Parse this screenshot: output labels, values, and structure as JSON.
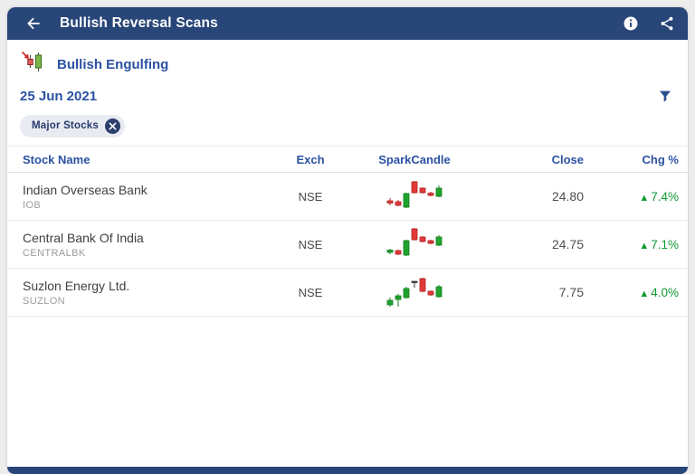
{
  "header": {
    "title": "Bullish Reversal Scans",
    "back_icon": "back-arrow-icon",
    "info_icon": "info-icon",
    "share_icon": "share-icon"
  },
  "scan": {
    "title": "Bullish Engulfing",
    "date": "25 Jun 2021",
    "scan_icon": "bullish-engulfing-candles-icon",
    "filter_icon": "filter-funnel-icon"
  },
  "chip": {
    "label": "Major Stocks",
    "remove_icon": "close-x-icon"
  },
  "table": {
    "columns": [
      "Stock Name",
      "Exch",
      "SparkCandle",
      "Close",
      "Chg %"
    ],
    "rows": [
      {
        "name": "Indian Overseas Bank",
        "symbol": "IOB",
        "exch": "NSE",
        "close": "24.80",
        "chg": "7.4%",
        "direction": "up",
        "spark": [
          {
            "k": "down",
            "b": [
              27,
              29.5
            ],
            "w": [
              24,
              32
            ]
          },
          {
            "k": "down",
            "b": [
              28,
              32
            ],
            "w": [
              26,
              33
            ]
          },
          {
            "k": "up",
            "b": [
              19,
              34
            ],
            "w": [
              18,
              35
            ]
          },
          {
            "k": "down",
            "b": [
              6,
              18
            ],
            "w": [
              5,
              19
            ]
          },
          {
            "k": "down",
            "b": [
              13,
              18
            ],
            "w": [
              12,
              19
            ]
          },
          {
            "k": "down",
            "b": [
              18.5,
              21
            ],
            "w": [
              17,
              22
            ]
          },
          {
            "k": "up",
            "b": [
              13,
              22
            ],
            "w": [
              10,
              23
            ]
          }
        ]
      },
      {
        "name": "Central Bank Of India",
        "symbol": "CENTRALBK",
        "exch": "NSE",
        "close": "24.75",
        "chg": "7.1%",
        "direction": "up",
        "spark": [
          {
            "k": "up",
            "b": [
              28.5,
              31
            ],
            "w": [
              27,
              33
            ]
          },
          {
            "k": "down",
            "b": [
              29,
              33
            ],
            "w": [
              28,
              34
            ]
          },
          {
            "k": "up",
            "b": [
              18,
              34
            ],
            "w": [
              17,
              35
            ]
          },
          {
            "k": "down",
            "b": [
              5,
              17
            ],
            "w": [
              4,
              18
            ]
          },
          {
            "k": "down",
            "b": [
              14,
              19
            ],
            "w": [
              13,
              20
            ]
          },
          {
            "k": "down",
            "b": [
              18,
              21
            ],
            "w": [
              17,
              22
            ]
          },
          {
            "k": "up",
            "b": [
              14,
              23
            ],
            "w": [
              12,
              24
            ]
          }
        ]
      },
      {
        "name": "Suzlon Energy Ltd.",
        "symbol": "SUZLON",
        "exch": "NSE",
        "close": "7.75",
        "chg": "4.0%",
        "direction": "up",
        "spark": [
          {
            "k": "up",
            "b": [
              31,
              36
            ],
            "w": [
              28,
              38
            ]
          },
          {
            "k": "up",
            "b": [
              26,
              30
            ],
            "w": [
              24,
              38
            ]
          },
          {
            "k": "up",
            "b": [
              18,
              28
            ],
            "w": [
              16,
              29
            ]
          },
          {
            "k": "doji",
            "b": [
              10,
              11.5
            ],
            "w": [
              10,
              17
            ]
          },
          {
            "k": "down",
            "b": [
              7,
              21
            ],
            "w": [
              6,
              22
            ]
          },
          {
            "k": "down",
            "b": [
              21,
              25
            ],
            "w": [
              20,
              26
            ]
          },
          {
            "k": "up",
            "b": [
              16,
              27
            ],
            "w": [
              14,
              28
            ]
          }
        ]
      }
    ]
  },
  "symbols": {
    "up_triangle": "▲"
  },
  "colors": {
    "topbar": "#284678",
    "accent_blue": "#2b51a3",
    "candle_up": "#1fa32c",
    "candle_up_stroke": "#137c1e",
    "candle_down": "#e23a3a",
    "candle_down_stroke": "#b22222",
    "candle_doji": "#3a3a3a",
    "change_up": "#119b33",
    "chip_bg": "#e9ebf2",
    "chip_fg": "#263a6d"
  }
}
